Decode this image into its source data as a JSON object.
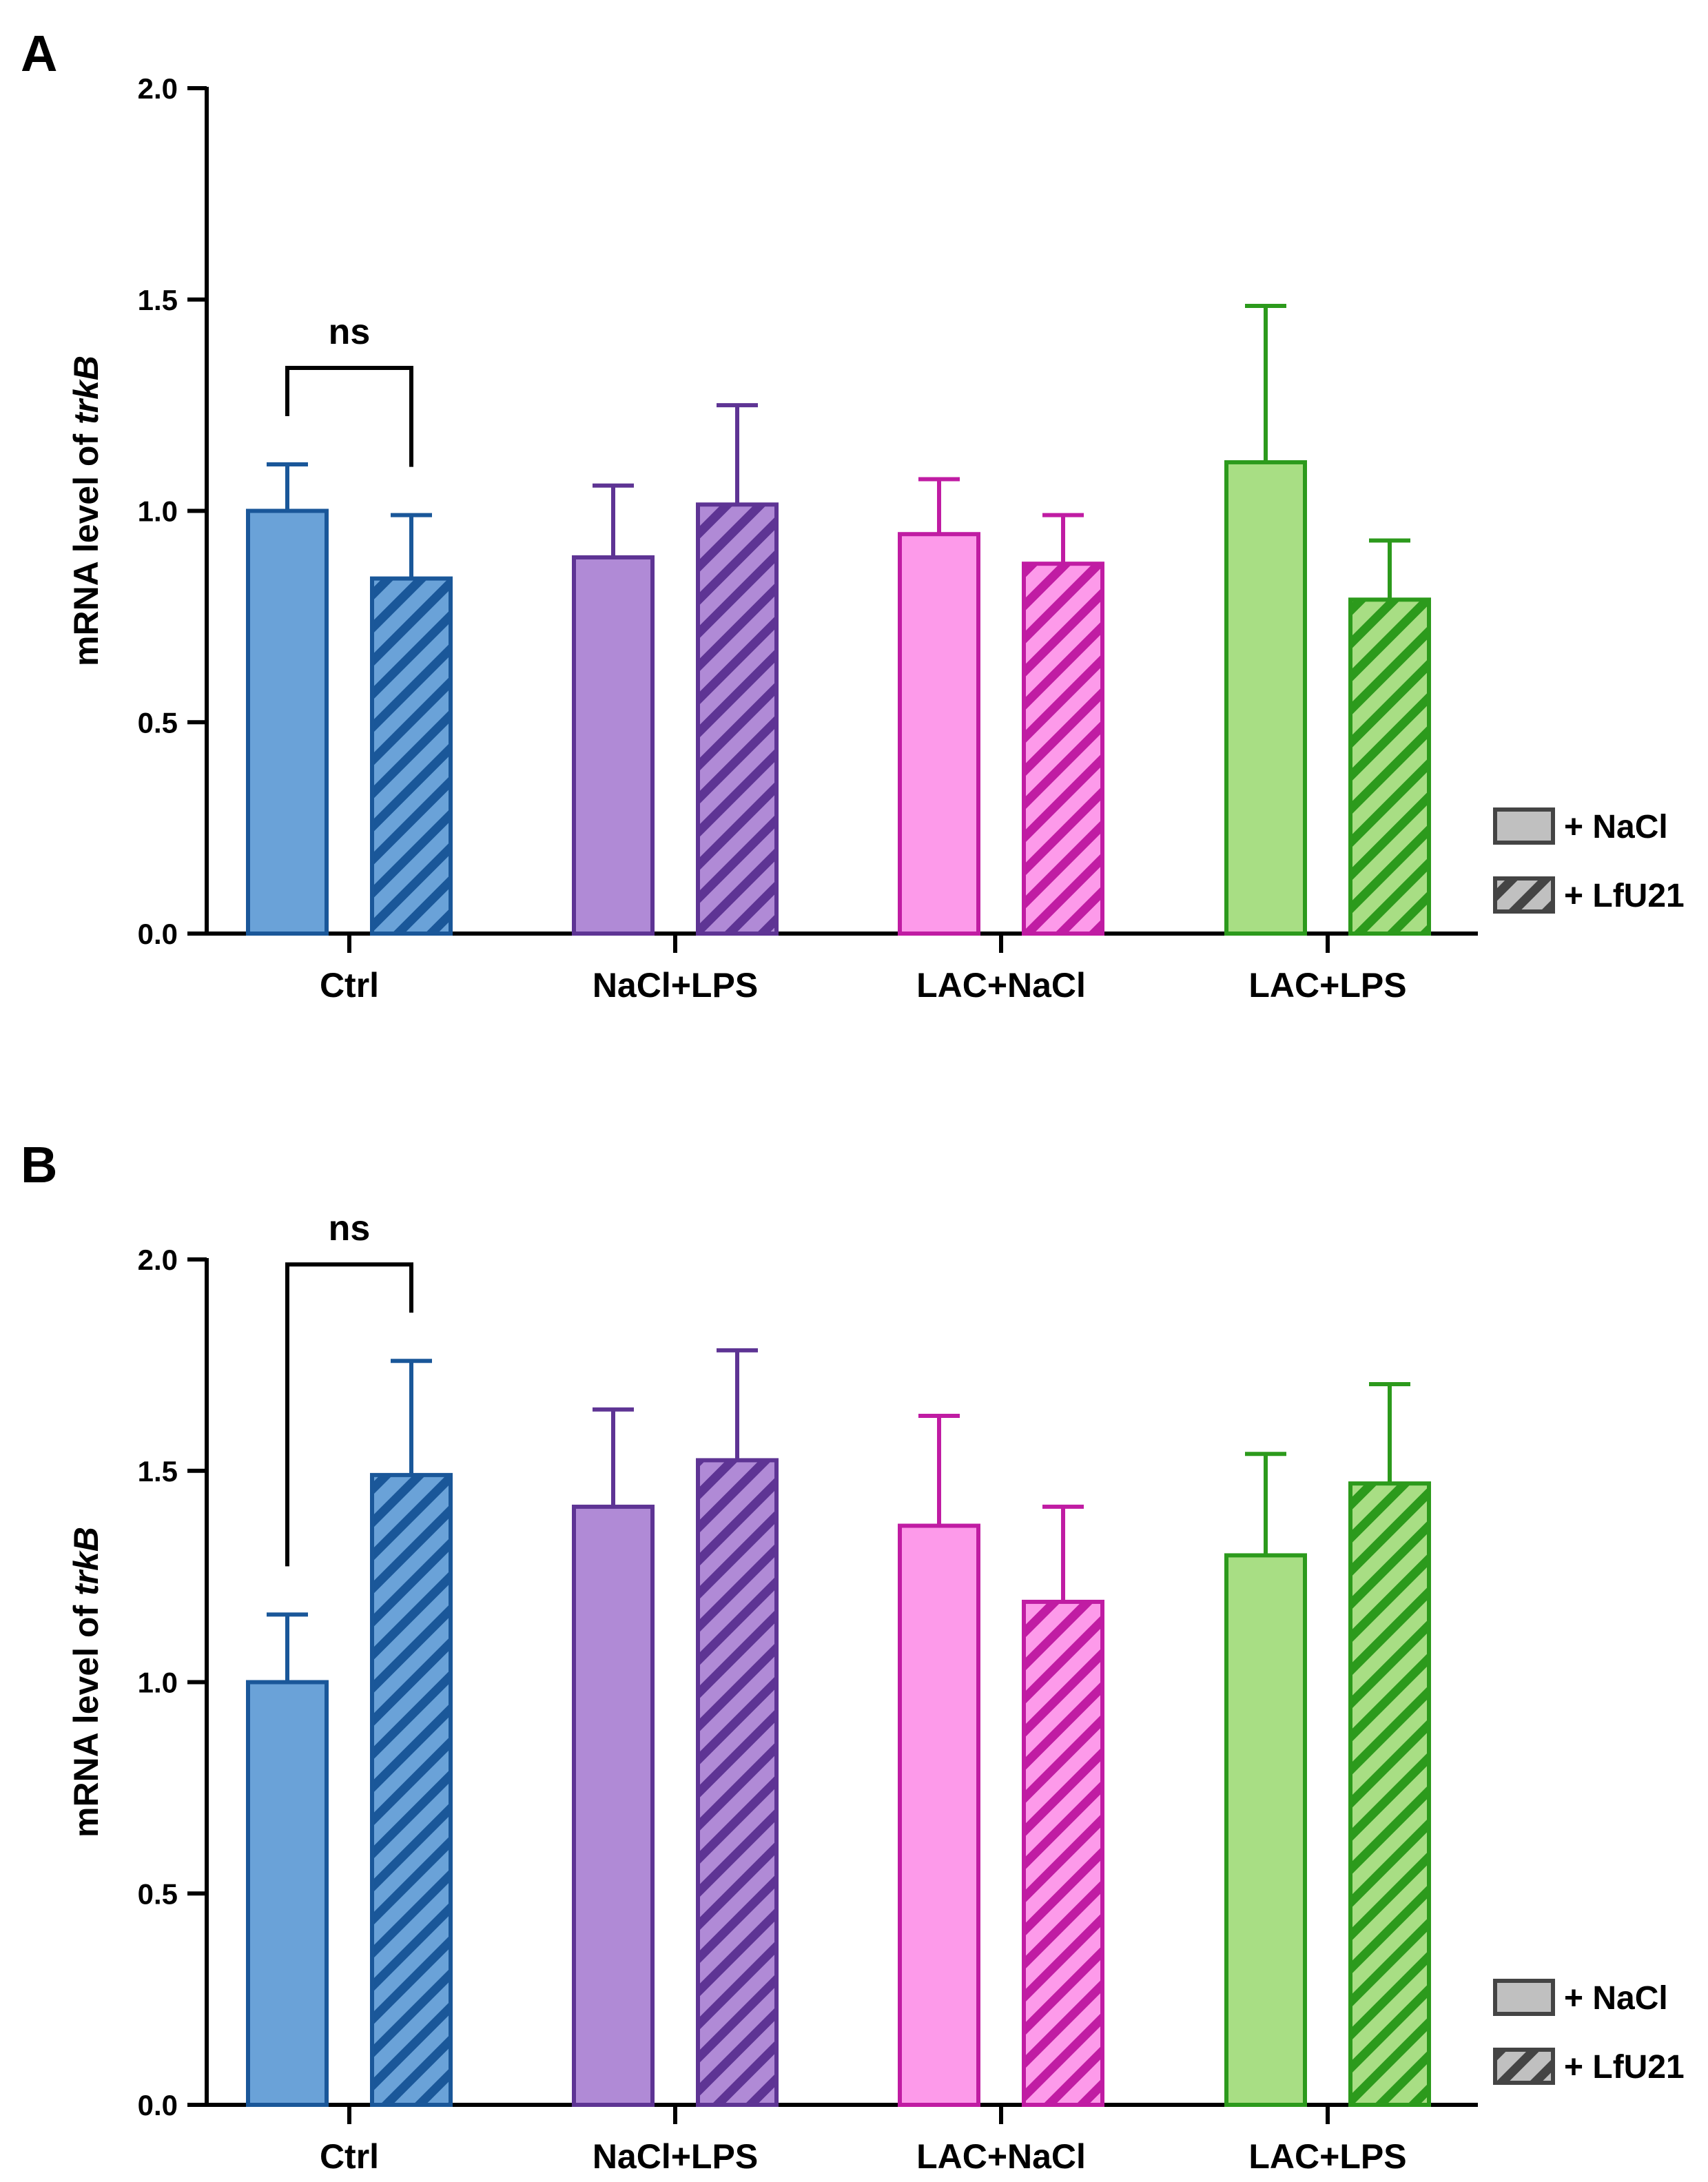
{
  "chart_data": [
    {
      "panel": "A",
      "type": "bar",
      "ylabel_prefix": "mRNA level of ",
      "ylabel_gene": "trkB",
      "ylim": [
        0,
        2.0
      ],
      "yticks": [
        "0.0",
        "0.5",
        "1.0",
        "1.5",
        "2.0"
      ],
      "categories": [
        "Ctrl",
        "NaCl+LPS",
        "LAC+NaCl",
        "LAC+LPS"
      ],
      "category_colors": [
        {
          "edge": "#1a5799",
          "fill": "#6aa2d8"
        },
        {
          "edge": "#5e3494",
          "fill": "#b08ad6"
        },
        {
          "edge": "#c01ca3",
          "fill": "#fd9aea"
        },
        {
          "edge": "#2c9a1c",
          "fill": "#a8de84"
        }
      ],
      "series": [
        {
          "name": "+ NaCl",
          "pattern": "solid",
          "values": [
            1.0,
            0.89,
            0.945,
            1.115
          ],
          "errors": [
            0.11,
            0.17,
            0.13,
            0.37
          ]
        },
        {
          "name": "+ LfU21",
          "pattern": "hatched",
          "values": [
            0.84,
            1.015,
            0.875,
            0.79
          ],
          "errors": [
            0.15,
            0.235,
            0.115,
            0.14
          ]
        }
      ],
      "significance": [
        {
          "category": "Ctrl",
          "label": "ns"
        }
      ],
      "grid": false,
      "legend": "right"
    },
    {
      "panel": "B",
      "type": "bar",
      "ylabel_prefix": "mRNA level of ",
      "ylabel_gene": "trkB",
      "ylim": [
        0,
        2.0
      ],
      "yticks": [
        "0.0",
        "0.5",
        "1.0",
        "1.5",
        "2.0"
      ],
      "categories": [
        "Ctrl",
        "NaCl+LPS",
        "LAC+NaCl",
        "LAC+LPS"
      ],
      "category_colors": [
        {
          "edge": "#1a5799",
          "fill": "#6aa2d8"
        },
        {
          "edge": "#5e3494",
          "fill": "#b08ad6"
        },
        {
          "edge": "#c01ca3",
          "fill": "#fd9aea"
        },
        {
          "edge": "#2c9a1c",
          "fill": "#a8de84"
        }
      ],
      "series": [
        {
          "name": "+ NaCl",
          "pattern": "solid",
          "values": [
            1.0,
            1.415,
            1.37,
            1.3
          ],
          "errors": [
            0.16,
            0.23,
            0.26,
            0.24
          ]
        },
        {
          "name": "+ LfU21",
          "pattern": "hatched",
          "values": [
            1.49,
            1.525,
            1.19,
            1.47
          ],
          "errors": [
            0.27,
            0.26,
            0.225,
            0.235
          ]
        }
      ],
      "significance": [
        {
          "category": "Ctrl",
          "label": "ns"
        }
      ],
      "grid": false,
      "legend": "right"
    }
  ],
  "legend_colors": {
    "edge": "#444444",
    "fill": "#c0c0c0"
  }
}
